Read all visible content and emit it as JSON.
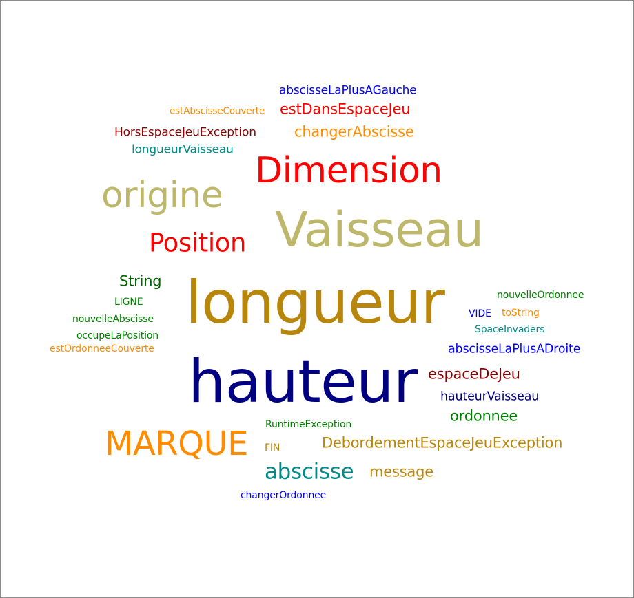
{
  "word_cloud": {
    "colors": {
      "darkblue": "#000080",
      "blue": "#0000FF",
      "red": "#FF0000",
      "orange": "#FF8C00",
      "darkred": "#8B0000",
      "teal": "#008B8B",
      "khaki": "#BDB76B",
      "goldenrod": "#B8860B",
      "green": "#008000",
      "darkgreen": "#006400"
    },
    "words": [
      {
        "text": "abscisseLaPlusAGauche",
        "color": "blue"
      },
      {
        "text": "estAbscisseCouverte",
        "color": "orange"
      },
      {
        "text": "estDansEspaceJeu",
        "color": "red"
      },
      {
        "text": "HorsEspaceJeuException",
        "color": "darkred"
      },
      {
        "text": "changerAbscisse",
        "color": "orange"
      },
      {
        "text": "longueurVaisseau",
        "color": "teal"
      },
      {
        "text": "Dimension",
        "color": "red"
      },
      {
        "text": "origine",
        "color": "khaki"
      },
      {
        "text": "Vaisseau",
        "color": "khaki"
      },
      {
        "text": "Position",
        "color": "red"
      },
      {
        "text": "String",
        "color": "darkgreen"
      },
      {
        "text": "longueur",
        "color": "goldenrod"
      },
      {
        "text": "nouvelleOrdonnee",
        "color": "green"
      },
      {
        "text": "LIGNE",
        "color": "green"
      },
      {
        "text": "VIDE",
        "color": "blue"
      },
      {
        "text": "toString",
        "color": "orange"
      },
      {
        "text": "nouvelleAbscisse",
        "color": "green"
      },
      {
        "text": "SpaceInvaders",
        "color": "teal"
      },
      {
        "text": "occupeLaPosition",
        "color": "green"
      },
      {
        "text": "estOrdonneeCouverte",
        "color": "orange"
      },
      {
        "text": "abscisseLaPlusADroite",
        "color": "blue"
      },
      {
        "text": "hauteur",
        "color": "darkblue"
      },
      {
        "text": "espaceDeJeu",
        "color": "darkred"
      },
      {
        "text": "hauteurVaisseau",
        "color": "darkblue"
      },
      {
        "text": "ordonnee",
        "color": "green"
      },
      {
        "text": "RuntimeException",
        "color": "green"
      },
      {
        "text": "MARQUE",
        "color": "orange"
      },
      {
        "text": "DebordementEspaceJeuException",
        "color": "goldenrod"
      },
      {
        "text": "FIN",
        "color": "goldenrod"
      },
      {
        "text": "abscisse",
        "color": "teal"
      },
      {
        "text": "message",
        "color": "goldenrod"
      },
      {
        "text": "changerOrdonnee",
        "color": "blue"
      }
    ]
  }
}
